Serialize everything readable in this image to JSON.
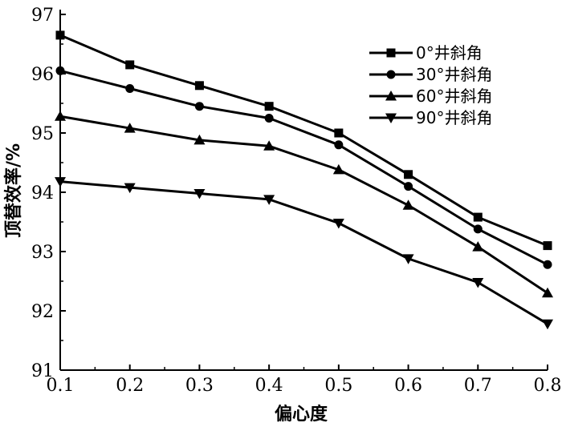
{
  "chart_data": {
    "type": "line",
    "xlabel": "偏心度",
    "ylabel": "顶替效率/%",
    "xlim": [
      0.1,
      0.8
    ],
    "ylim": [
      91,
      97
    ],
    "x_ticks": [
      "0.1",
      "0.2",
      "0.3",
      "0.4",
      "0.5",
      "0.6",
      "0.7",
      "0.8"
    ],
    "y_ticks": [
      "91",
      "92",
      "93",
      "94",
      "95",
      "96",
      "97"
    ],
    "x": [
      0.1,
      0.2,
      0.3,
      0.4,
      0.5,
      0.6,
      0.7,
      0.8
    ],
    "grid": false,
    "legend_position": "top-right",
    "series": [
      {
        "name": "0°井斜角",
        "marker": "square",
        "values": [
          96.65,
          96.15,
          95.8,
          95.45,
          95.0,
          94.3,
          93.58,
          93.1
        ]
      },
      {
        "name": "30°井斜角",
        "marker": "circle",
        "values": [
          96.05,
          95.75,
          95.45,
          95.25,
          94.8,
          94.1,
          93.38,
          92.78
        ]
      },
      {
        "name": "60°井斜角",
        "marker": "triangle-up",
        "values": [
          95.28,
          95.08,
          94.88,
          94.78,
          94.38,
          93.78,
          93.08,
          92.3
        ]
      },
      {
        "name": "90°井斜角",
        "marker": "triangle-down",
        "values": [
          94.18,
          94.08,
          93.98,
          93.88,
          93.48,
          92.88,
          92.48,
          91.78
        ]
      }
    ]
  }
}
